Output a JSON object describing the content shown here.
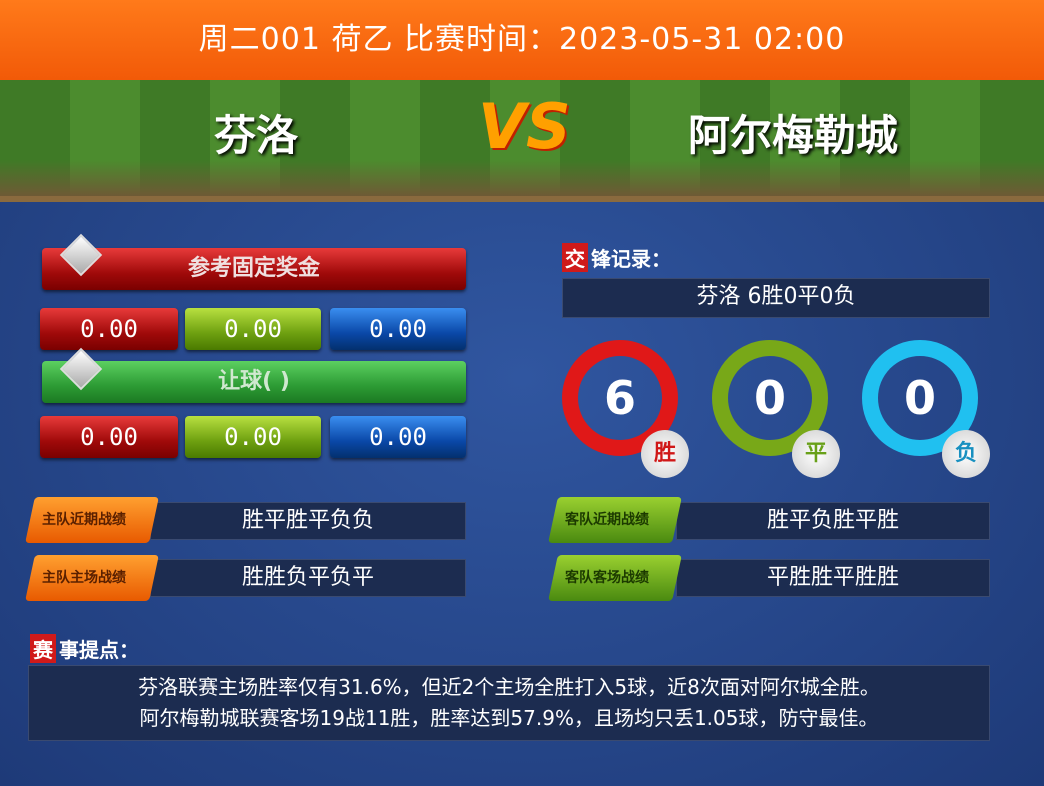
{
  "header": {
    "title": "周二001   荷乙   比赛时间：2023-05-31 02:00"
  },
  "match": {
    "home": "芬洛",
    "vs": "VS",
    "away": "阿尔梅勒城"
  },
  "odds": {
    "fixed_label": "参考固定奖金",
    "fixed": [
      "0.00",
      "0.00",
      "0.00"
    ],
    "handicap_label": "让球(   )",
    "handicap": [
      "0.00",
      "0.00",
      "0.00"
    ]
  },
  "h2h": {
    "title_icon": "交",
    "title": "锋记录：",
    "summary": "芬洛  6胜0平0负",
    "win": {
      "count": "6",
      "label": "胜",
      "color": "#e01818"
    },
    "draw": {
      "count": "0",
      "label": "平",
      "color": "#78a818"
    },
    "loss": {
      "count": "0",
      "label": "负",
      "color": "#20c0f0"
    }
  },
  "form": {
    "home_recent_label": "主队近期战绩",
    "home_recent": "胜平胜平负负",
    "home_home_label": "主队主场战绩",
    "home_home": "胜胜负平负平",
    "away_recent_label": "客队近期战绩",
    "away_recent": "胜平负胜平胜",
    "away_away_label": "客队客场战绩",
    "away_away": "平胜胜平胜胜"
  },
  "tips": {
    "title_icon": "赛",
    "title": "事提点：",
    "lines": [
      "芬洛联赛主场胜率仅有31.6%，但近2个主场全胜打入5球，近8次面对阿尔城全胜。",
      "阿尔梅勒城联赛客场19战11胜，胜率达到57.9%，且场均只丢1.05球，防守最佳。"
    ]
  }
}
